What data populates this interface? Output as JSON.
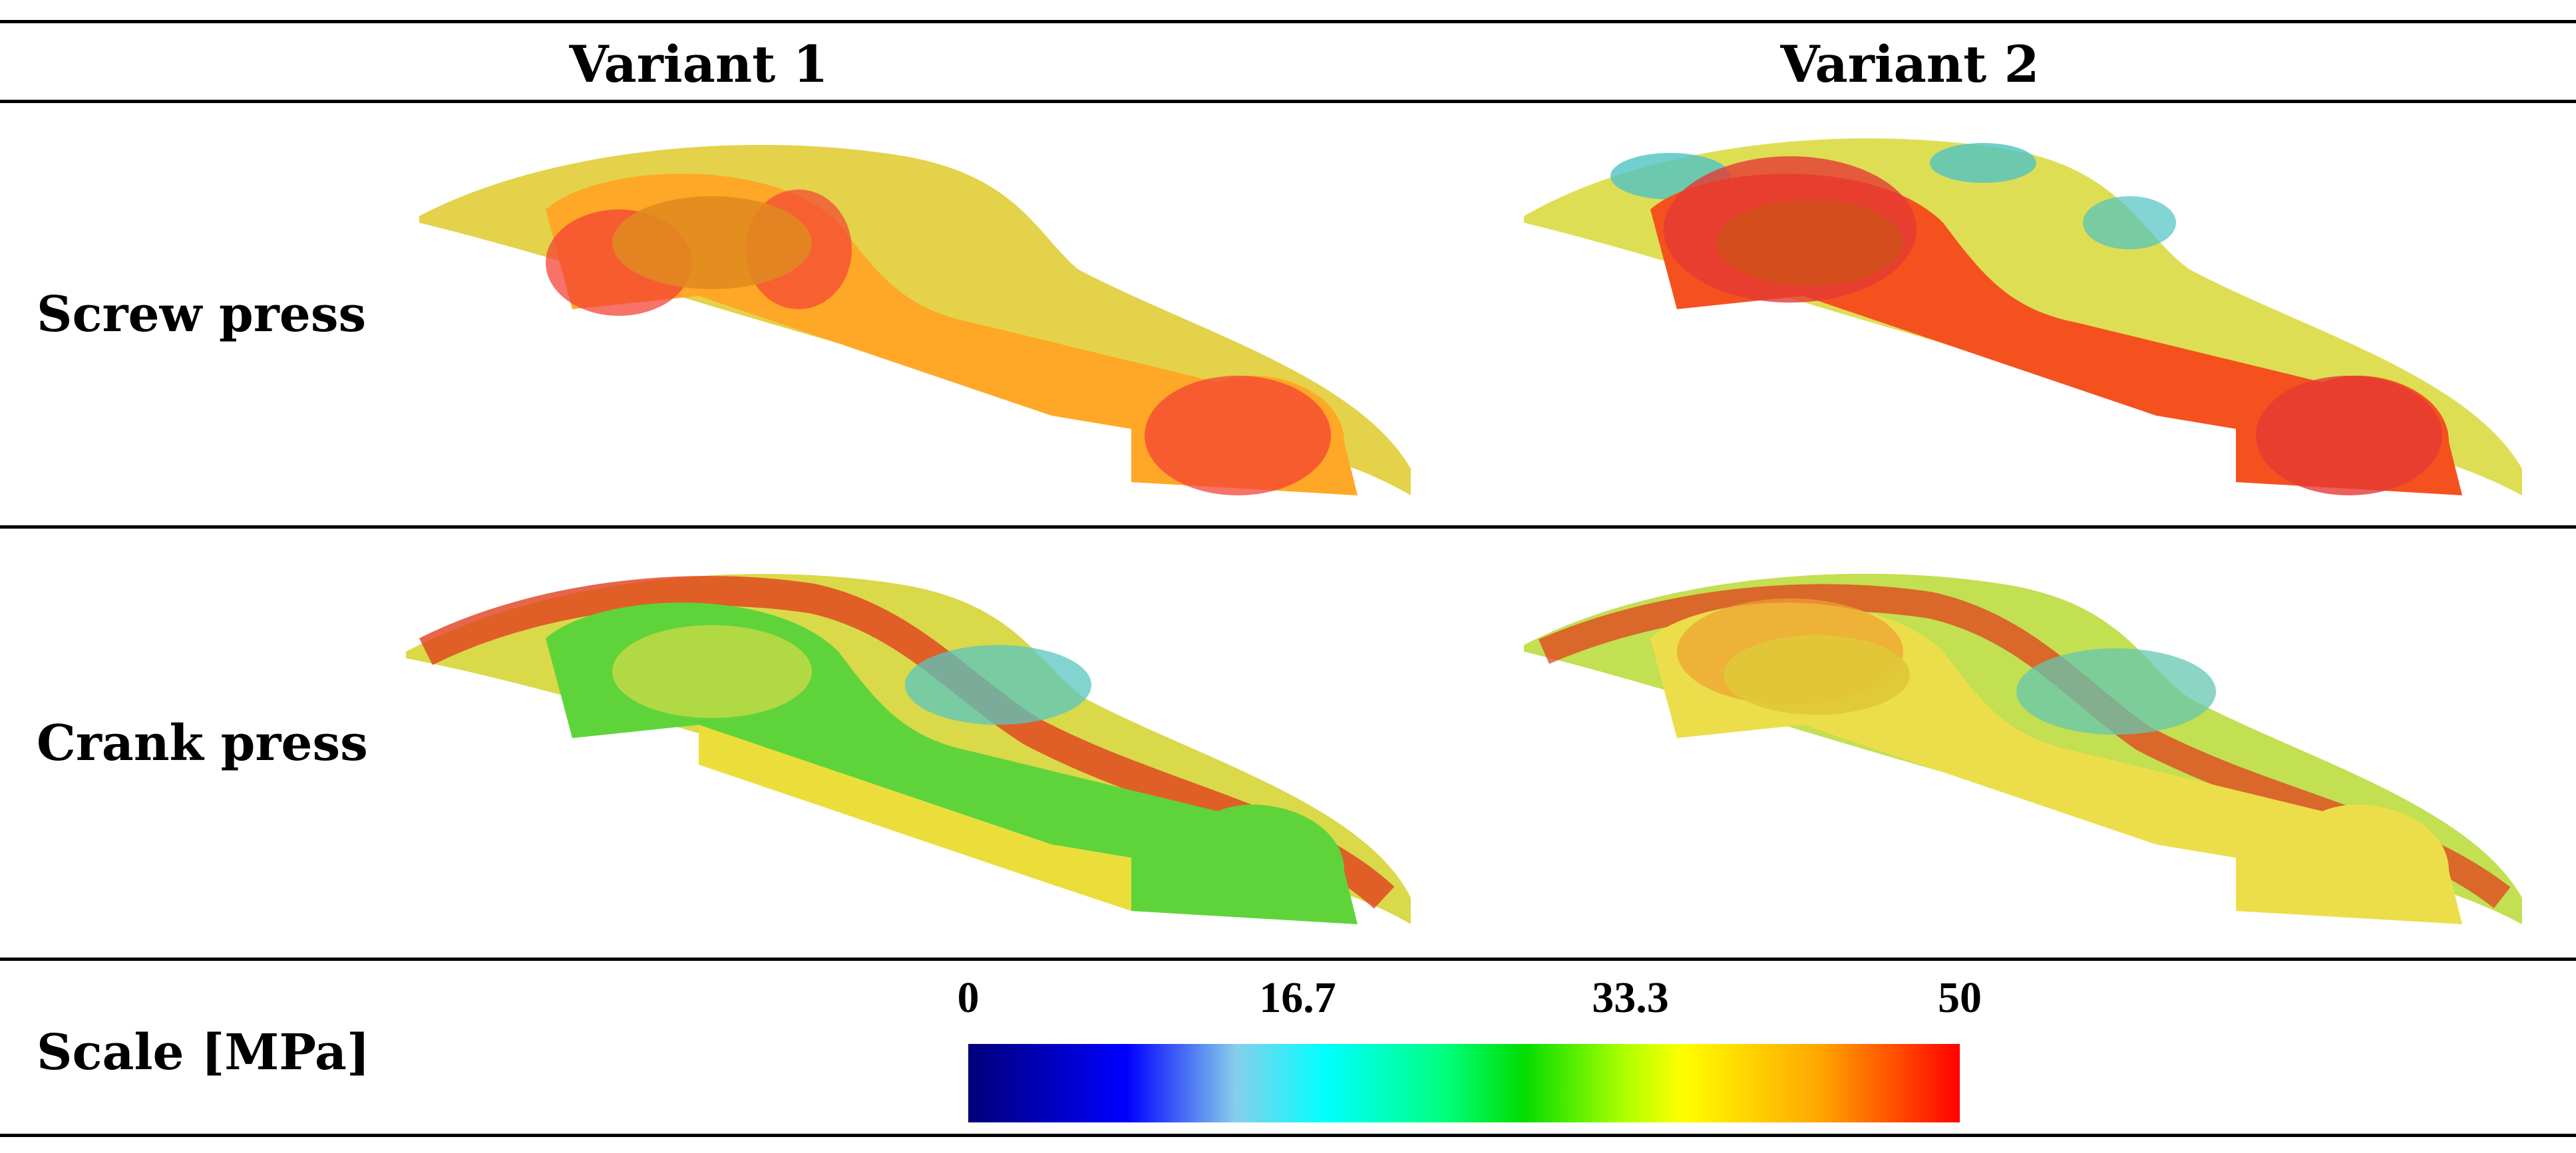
{
  "table": {
    "columns": [
      "",
      "Variant 1",
      "Variant 2"
    ],
    "rows": [
      {
        "label": "Screw press",
        "cells": [
          "stress map",
          "stress map"
        ]
      },
      {
        "label": "Crank press",
        "cells": [
          "stress map",
          "stress map"
        ]
      }
    ],
    "scale_row_label": "Scale [MPa]"
  },
  "scale": {
    "ticks": [
      "0",
      "16.7",
      "33.3",
      "50"
    ],
    "tick_values": [
      0,
      16.7,
      33.3,
      50
    ],
    "min": 0,
    "max": 50,
    "colors": [
      "#00007a",
      "#0000ff",
      "#87ceeb",
      "#00ffff",
      "#00ff7f",
      "#00dd00",
      "#aaff00",
      "#ffff00",
      "#ffa500",
      "#ff3000",
      "#ff0000"
    ]
  },
  "panel_palette": {
    "screw_v1": {
      "base": "#ffa726",
      "rim": "#e3d24a",
      "hot": "#f44336"
    },
    "screw_v2": {
      "base": "#f4511e",
      "rim": "#dede55",
      "hot": "#e53935",
      "cool": "#4fc3c3"
    },
    "crank_v1": {
      "base": "#5fd43a",
      "rim": "#d9d94a",
      "hot": "#e0401e",
      "cool": "#58c6c0"
    },
    "crank_v2": {
      "base": "#ecde4a",
      "rim": "#c3df52",
      "hot": "#e0401e",
      "cool": "#66c7b0"
    }
  }
}
